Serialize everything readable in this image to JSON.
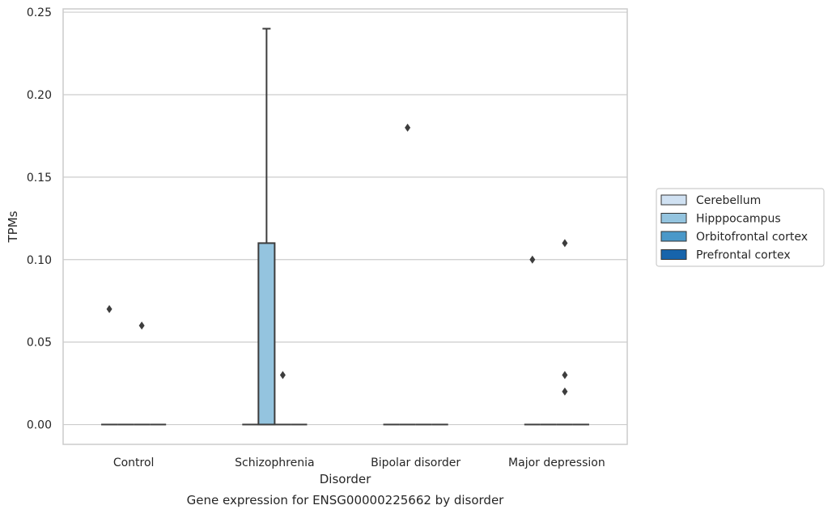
{
  "chart_data": {
    "type": "box",
    "caption": "Gene expression for ENSG00000225662 by disorder",
    "xlabel": "Disorder",
    "ylabel": "TPMs",
    "ylim": [
      -0.012,
      0.252
    ],
    "yticks": [
      0.0,
      0.05,
      0.1,
      0.15,
      0.2,
      0.25
    ],
    "ytick_labels": [
      "0.00",
      "0.05",
      "0.10",
      "0.15",
      "0.20",
      "0.25"
    ],
    "grid": "horizontal",
    "legend_position": "right",
    "categories": [
      "Control",
      "Schizophrenia",
      "Bipolar disorder",
      "Major depression"
    ],
    "series": [
      {
        "name": "Cerebellum",
        "color": "#d0e1f2",
        "boxes": [
          {
            "q1": 0,
            "median": 0,
            "q3": 0,
            "whisker_low": 0,
            "whisker_high": 0,
            "outliers": [
              0.07
            ]
          },
          {
            "q1": 0,
            "median": 0,
            "q3": 0,
            "whisker_low": 0,
            "whisker_high": 0,
            "outliers": []
          },
          {
            "q1": 0,
            "median": 0,
            "q3": 0,
            "whisker_low": 0,
            "whisker_high": 0,
            "outliers": []
          },
          {
            "q1": 0,
            "median": 0,
            "q3": 0,
            "whisker_low": 0,
            "whisker_high": 0,
            "outliers": [
              0.1
            ]
          }
        ]
      },
      {
        "name": "Hipppocampus",
        "color": "#94c4df",
        "boxes": [
          {
            "q1": 0,
            "median": 0,
            "q3": 0,
            "whisker_low": 0,
            "whisker_high": 0,
            "outliers": []
          },
          {
            "q1": 0,
            "median": 0,
            "q3": 0.11,
            "whisker_low": 0,
            "whisker_high": 0.24,
            "outliers": []
          },
          {
            "q1": 0,
            "median": 0,
            "q3": 0,
            "whisker_low": 0,
            "whisker_high": 0,
            "outliers": [
              0.18
            ]
          },
          {
            "q1": 0,
            "median": 0,
            "q3": 0,
            "whisker_low": 0,
            "whisker_high": 0,
            "outliers": []
          }
        ]
      },
      {
        "name": "Orbitofrontal cortex",
        "color": "#4a98c9",
        "boxes": [
          {
            "q1": 0,
            "median": 0,
            "q3": 0,
            "whisker_low": 0,
            "whisker_high": 0,
            "outliers": [
              0.06
            ]
          },
          {
            "q1": 0,
            "median": 0,
            "q3": 0,
            "whisker_low": 0,
            "whisker_high": 0,
            "outliers": [
              0.03
            ]
          },
          {
            "q1": 0,
            "median": 0,
            "q3": 0,
            "whisker_low": 0,
            "whisker_high": 0,
            "outliers": []
          },
          {
            "q1": 0,
            "median": 0,
            "q3": 0,
            "whisker_low": 0,
            "whisker_high": 0,
            "outliers": [
              0.11,
              0.03,
              0.02
            ]
          }
        ]
      },
      {
        "name": "Prefrontal cortex",
        "color": "#1764ab",
        "boxes": [
          {
            "q1": 0,
            "median": 0,
            "q3": 0,
            "whisker_low": 0,
            "whisker_high": 0,
            "outliers": []
          },
          {
            "q1": 0,
            "median": 0,
            "q3": 0,
            "whisker_low": 0,
            "whisker_high": 0,
            "outliers": []
          },
          {
            "q1": 0,
            "median": 0,
            "q3": 0,
            "whisker_low": 0,
            "whisker_high": 0,
            "outliers": []
          },
          {
            "q1": 0,
            "median": 0,
            "q3": 0,
            "whisker_low": 0,
            "whisker_high": 0,
            "outliers": []
          }
        ]
      }
    ]
  }
}
